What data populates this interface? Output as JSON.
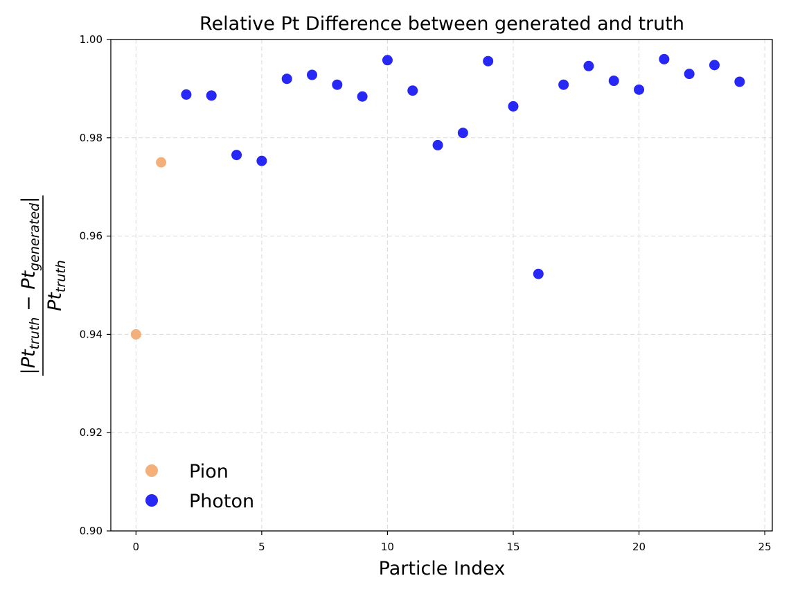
{
  "chart_data": {
    "type": "scatter",
    "title": "Relative Pt Difference between generated and truth",
    "xlabel": "Particle Index",
    "ylabel": {
      "numerator_bar": "|",
      "numerator_a": "Pt",
      "numerator_a_sub": "truth",
      "minus": " − ",
      "numerator_b": "Pt",
      "numerator_b_sub": "generated",
      "denominator": "Pt",
      "denominator_sub": "truth"
    },
    "xlim": [
      -1,
      25.3
    ],
    "ylim": [
      0.9,
      1.0
    ],
    "xticks": [
      0,
      5,
      10,
      15,
      20,
      25
    ],
    "yticks": [
      0.9,
      0.92,
      0.94,
      0.96,
      0.98,
      1.0
    ],
    "ytick_labels": [
      "0.90",
      "0.92",
      "0.94",
      "0.96",
      "0.98",
      "1.00"
    ],
    "grid": true,
    "legend_position": "lower-left",
    "series": [
      {
        "name": "Pion",
        "color": "#f2a76b",
        "points": [
          [
            0,
            0.94
          ],
          [
            1,
            0.975
          ]
        ]
      },
      {
        "name": "Photon",
        "color": "#1010f5",
        "points": [
          [
            2,
            0.9888
          ],
          [
            3,
            0.9886
          ],
          [
            4,
            0.9765
          ],
          [
            5,
            0.9753
          ],
          [
            6,
            0.992
          ],
          [
            7,
            0.9928
          ],
          [
            8,
            0.9908
          ],
          [
            9,
            0.9884
          ],
          [
            10,
            0.9958
          ],
          [
            11,
            0.9896
          ],
          [
            12,
            0.9785
          ],
          [
            13,
            0.981
          ],
          [
            14,
            0.9956
          ],
          [
            15,
            0.9864
          ],
          [
            16,
            0.9523
          ],
          [
            17,
            0.9908
          ],
          [
            18,
            0.9946
          ],
          [
            19,
            0.9916
          ],
          [
            20,
            0.9898
          ],
          [
            21,
            0.996
          ],
          [
            22,
            0.993
          ],
          [
            23,
            0.9948
          ],
          [
            24,
            0.9914
          ]
        ]
      }
    ]
  }
}
